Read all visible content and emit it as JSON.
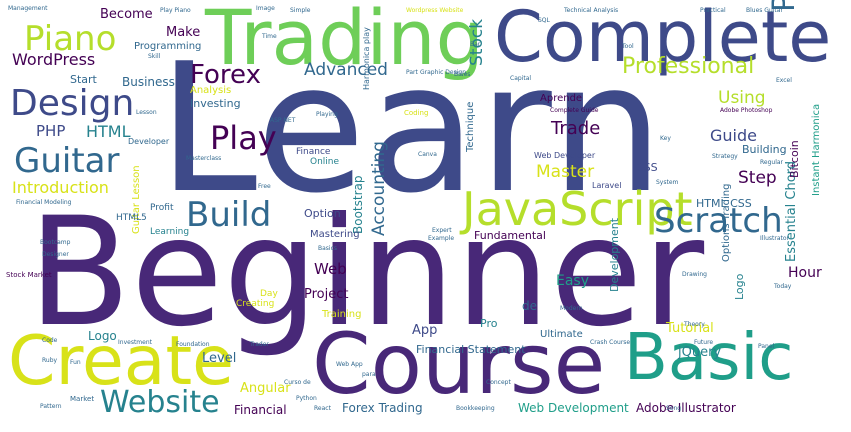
{
  "words": {
    "learn": "Learn",
    "beginner": "Beginner",
    "course": "Course",
    "trading": "Trading",
    "complete": "Complete",
    "create": "Create",
    "basic": "Basic",
    "javascript": "JavaScript",
    "design": "Design",
    "guitar": "Guitar",
    "piano": "Piano",
    "forex": "Forex",
    "build": "Build",
    "scratch": "Scratch",
    "photoshop": "Photoshop",
    "website": "Website",
    "play": "Play",
    "professional": "Professional",
    "advanced": "Advanced",
    "wordpress": "WordPress",
    "master": "Master",
    "trade": "Trade",
    "guide": "Guide",
    "using": "Using",
    "step": "Step",
    "introduction": "Introduction",
    "html": "HTML",
    "php": "PHP",
    "stock": "Stock",
    "accounting": "Accounting",
    "bootstrap": "Bootstrap",
    "web": "Web",
    "project": "Project",
    "hour": "Hour",
    "easy": "Easy",
    "tutorial": "Tutorial",
    "angular": "Angular",
    "financial": "Financial",
    "forex_trading": "Forex Trading",
    "web_development": "Web Development",
    "adobe_illustrator": "Adobe Illustrator",
    "financial_statement": "Financial Statement",
    "jquery": "jQuery",
    "logo": "Logo",
    "level": "Level",
    "essential_chord": "Essential Chord",
    "become": "Become",
    "make": "Make",
    "business": "Business",
    "start": "Start",
    "programming": "Programming",
    "analysis": "Analysis",
    "investing": "Investing",
    "aprende": "Aprende",
    "building": "Building",
    "instant_harmonica": "Instant Harmonica",
    "bitcoin": "Bitcoin",
    "fundamental": "Fundamental",
    "app": "App",
    "mastering": "Mastering",
    "option": "Option",
    "profit": "Profit",
    "learning": "Learning",
    "html5": "HTML5",
    "day": "Day",
    "creating": "Creating",
    "training": "Training",
    "ultimate": "Ultimate",
    "development": "Development",
    "options_trading": "Options Trading",
    "guitar_lesson": "Guitar Lesson",
    "web_developer": "Web Developer",
    "css": "CSS",
    "html_css": "HTML CSS",
    "laravel": "Laravel",
    "technique": "Technique",
    "harmonica_play": "Harmonica play",
    "finance": "Finance",
    "online": "Online",
    "developer": "Developer",
    "de": "de",
    "pro": "Pro",
    "complete_guide": "Complete Guide",
    "adobe_photoshop": "Adobe Photoshop",
    "management": "Management",
    "play_piano": "Play Piano",
    "image": "Image",
    "simple": "Simple",
    "wordpress_website": "Wordpress Website",
    "technical_analysis": "Technical Analysis",
    "practical": "Practical",
    "blues_guitar": "Blues Guitar",
    "coding": "Coding",
    "playing": "Playing",
    "graphic_design": "Graphic Design",
    "part": "Part",
    "masterclass": "Masterclass",
    "free": "Free",
    "financial_modeling": "Financial Modeling",
    "stock_market": "Stock Market",
    "bootcamp": "Bootcamp",
    "designer": "Designer",
    "market": "Market",
    "python": "Python",
    "react": "React",
    "pattern": "Pattern",
    "foundation": "Foundation",
    "trader": "Trader",
    "web_app": "Web App",
    "crash_course": "Crash Course",
    "future": "Future",
    "drawing": "Drawing",
    "illustrator": "Illustrator",
    "system": "System",
    "rails": "Rails",
    "strategy": "Strategy",
    "ruby": "Ruby",
    "excel": "Excel",
    "capital": "Capital",
    "canva": "Canva",
    "theory": "Theory",
    "modern": "Modern",
    "today": "Today",
    "song": "Song",
    "bookkeeping": "Bookkeeping",
    "example": "Example",
    "basics": "Basics",
    "asp_net": "ASP NET",
    "lesson": "Lesson",
    "skill": "Skill",
    "fun": "Fun",
    "code": "Code",
    "investment": "Investment",
    "concept": "Concept",
    "para": "para",
    "expert": "Expert",
    "intermediate": "Intermediate",
    "key": "Key",
    "regular": "Regular",
    "curso_de": "Curso de",
    "chord_level": "ON Level",
    "photoshop_cc": "Photoshop CC",
    "illustrator_cc": "Illustrator CC",
    "blues": "Blues",
    "pass": "Pass",
    "scale": "Scale",
    "time": "Time",
    "trick": "Trick",
    "bar": "Bar",
    "framework": "Framework",
    "responsive": "Responsive",
    "tool": "Tool",
    "panel": "Panel",
    "sql": "SQL",
    "web_design": "Web Design",
    "blog": "Blog"
  },
  "colors": {
    "background": "#ffffff",
    "palette": [
      "#440154",
      "#482878",
      "#3e4a89",
      "#31688e",
      "#26828e",
      "#1f9e89",
      "#35b779",
      "#6ece58",
      "#b5de2b",
      "#d8e219"
    ]
  }
}
